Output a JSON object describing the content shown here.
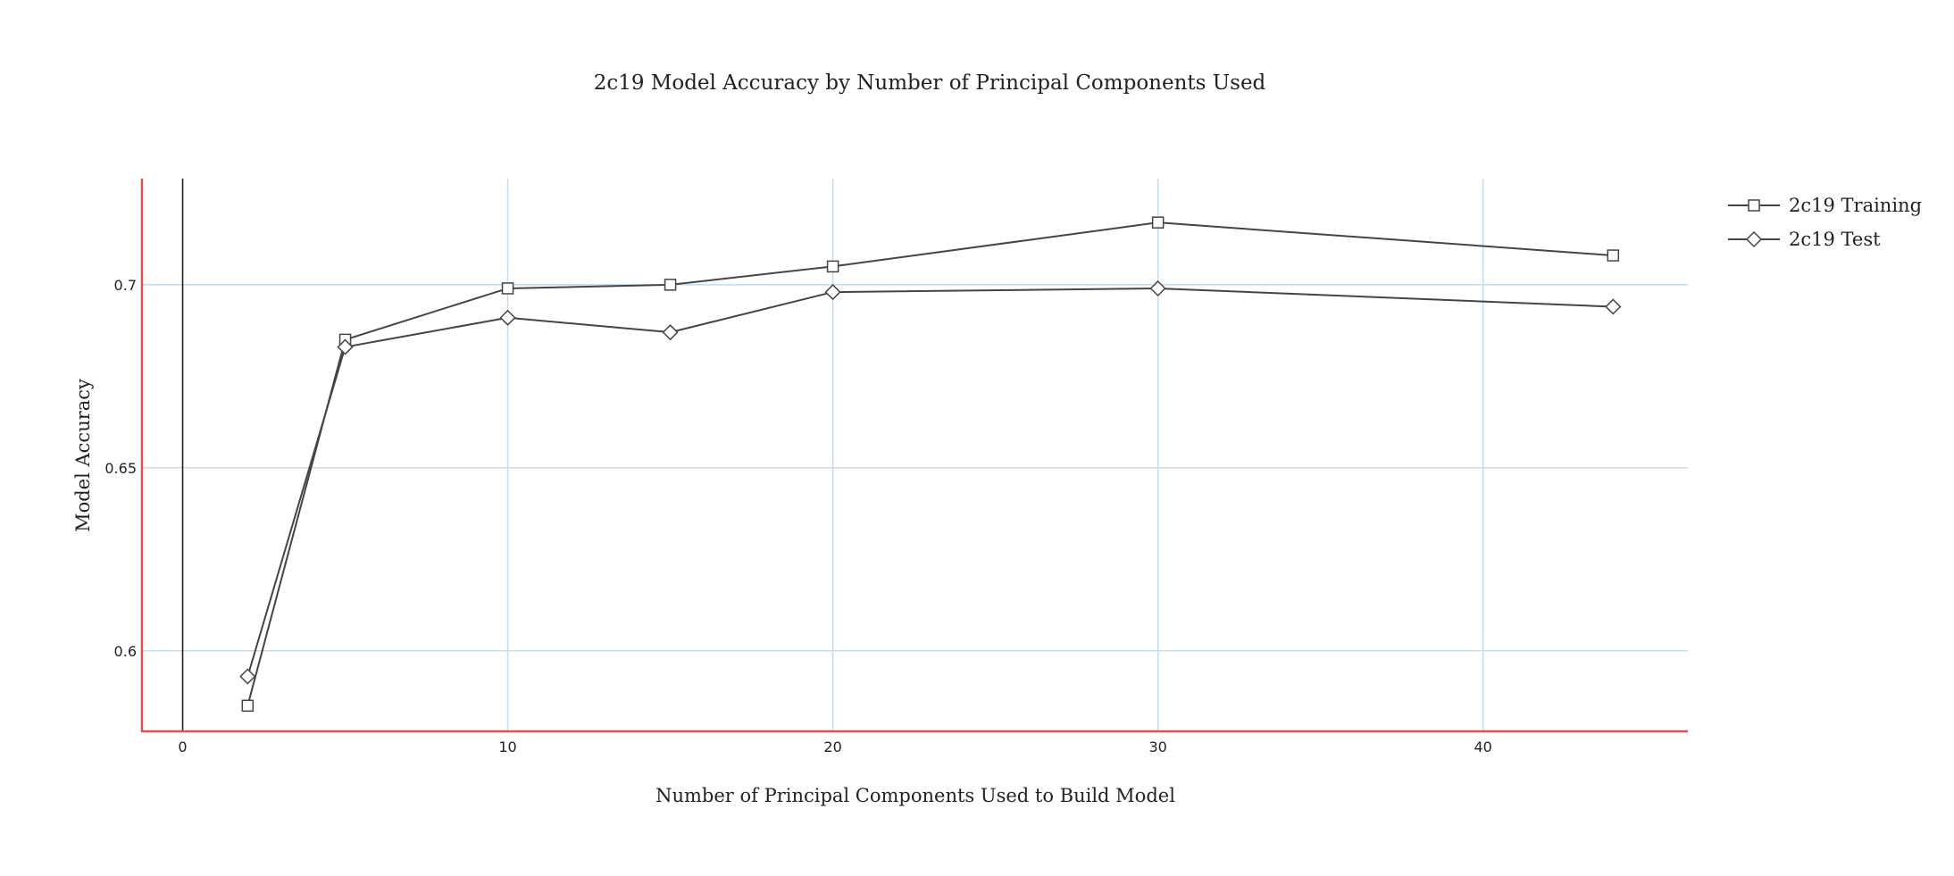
{
  "chart_data": {
    "type": "line",
    "title": "2c19 Model Accuracy by Number of Principal Components Used",
    "xlabel": "Number of Principal Components Used to Build Model",
    "ylabel": "Model Accuracy",
    "xlim": [
      -1.25,
      46.3
    ],
    "ylim": [
      0.578,
      0.729
    ],
    "x_ticks": [
      0,
      10,
      20,
      30,
      40
    ],
    "x_tick_labels": [
      "0",
      "10",
      "20",
      "30",
      "40"
    ],
    "y_ticks": [
      0.6,
      0.65,
      0.7
    ],
    "y_tick_labels": [
      "0.6",
      "0.65",
      "0.7"
    ],
    "grid": true,
    "legend_position": "right",
    "series": [
      {
        "name": "2c19 Training",
        "marker": "square",
        "color": "#444444",
        "x": [
          2,
          5,
          10,
          15,
          20,
          30,
          44
        ],
        "y": [
          0.585,
          0.685,
          0.699,
          0.7,
          0.705,
          0.717,
          0.708
        ]
      },
      {
        "name": "2c19 Test",
        "marker": "diamond",
        "color": "#444444",
        "x": [
          2,
          5,
          10,
          15,
          20,
          30,
          44
        ],
        "y": [
          0.593,
          0.683,
          0.691,
          0.687,
          0.698,
          0.699,
          0.694
        ]
      }
    ]
  },
  "colors": {
    "grid": "#c5dae8",
    "plot_frame": "#d9534f",
    "zero_line": "#222222",
    "series_line": "#444444"
  }
}
